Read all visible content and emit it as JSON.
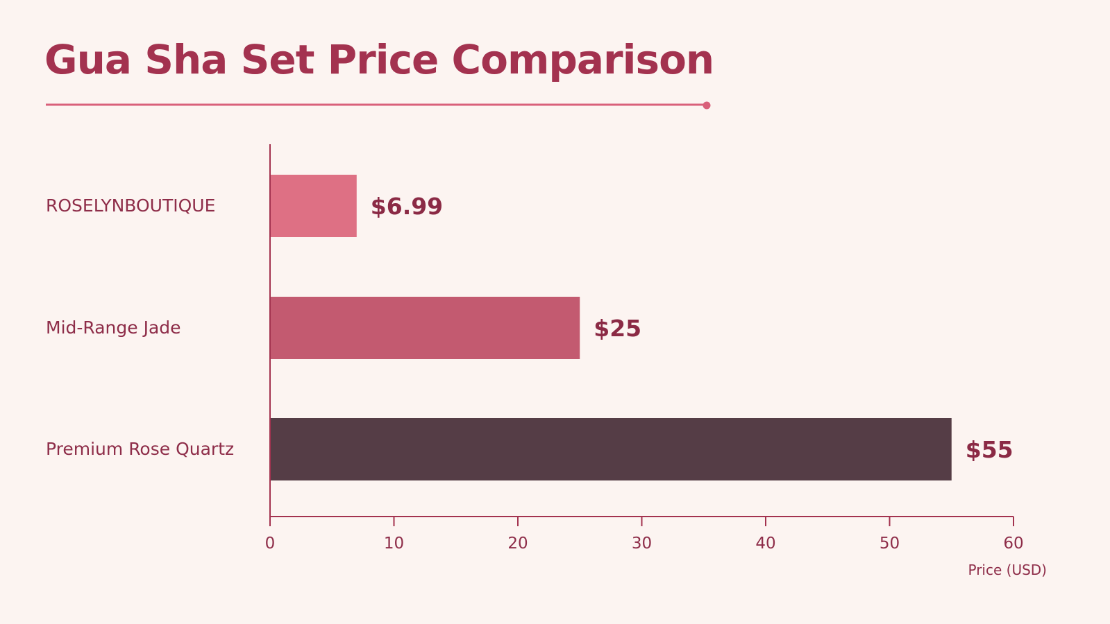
{
  "title": "Gua Sha Set Price Comparison",
  "colors": {
    "background": "#fcf4f1",
    "title": "#a3324f",
    "accent_line": "#d9607a",
    "axis": "#a3324f",
    "label_text": "#8e2d49",
    "value_text": "#8b2a45"
  },
  "chart_data": {
    "type": "bar",
    "orientation": "horizontal",
    "title": "Gua Sha Set Price Comparison",
    "categories": [
      "ROSELYNBOUTIQUE",
      "Mid-Range Jade",
      "Premium Rose Quartz"
    ],
    "values": [
      6.99,
      25,
      55
    ],
    "value_labels": [
      "$6.99",
      "$25",
      "$55"
    ],
    "bar_colors": [
      "#de7084",
      "#c35a70",
      "#553d46"
    ],
    "xlabel": "Price (USD)",
    "ylabel": "",
    "xlim": [
      0,
      60
    ],
    "xticks": [
      0,
      10,
      20,
      30,
      40,
      50,
      60
    ],
    "xtick_labels": [
      "0",
      "10",
      "20",
      "30",
      "40",
      "50",
      "60"
    ],
    "grid": false,
    "legend": "none"
  }
}
